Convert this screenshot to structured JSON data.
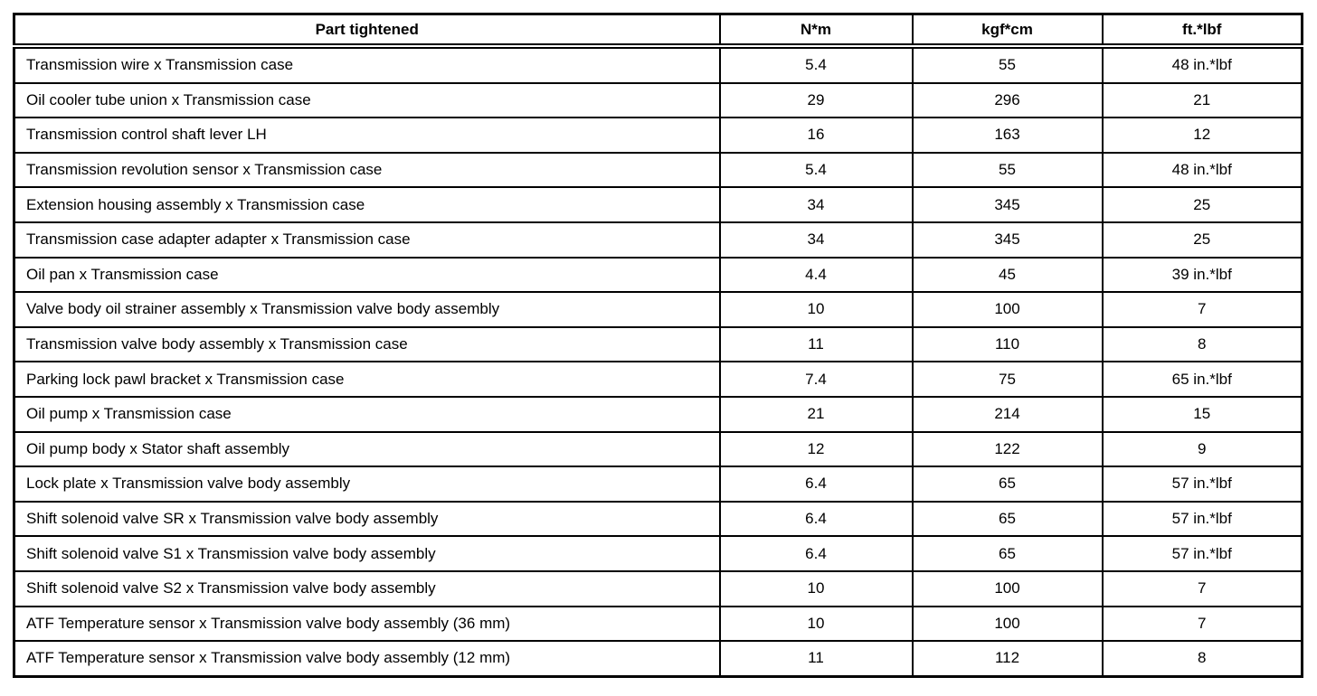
{
  "page": {
    "background_color": "#ffffff",
    "text_color": "#000000",
    "border_color": "#000000"
  },
  "table": {
    "columns": [
      {
        "id": "part",
        "label": "Part tightened"
      },
      {
        "id": "nm",
        "label": "N*m"
      },
      {
        "id": "kgfcm",
        "label": "kgf*cm"
      },
      {
        "id": "ftlbf",
        "label": "ft.*lbf"
      }
    ],
    "rows": [
      [
        "Transmission wire x Transmission case",
        "5.4",
        "55",
        "48 in.*lbf"
      ],
      [
        "Oil cooler tube union x Transmission case",
        "29",
        "296",
        "21"
      ],
      [
        "Transmission control shaft lever LH",
        "16",
        "163",
        "12"
      ],
      [
        "Transmission revolution sensor x Transmission case",
        "5.4",
        "55",
        "48 in.*lbf"
      ],
      [
        "Extension housing assembly x Transmission case",
        "34",
        "345",
        "25"
      ],
      [
        "Transmission case adapter adapter x Transmission case",
        "34",
        "345",
        "25"
      ],
      [
        "Oil pan x Transmission case",
        "4.4",
        "45",
        "39 in.*lbf"
      ],
      [
        "Valve body oil strainer assembly x Transmission valve body assembly",
        "10",
        "100",
        "7"
      ],
      [
        "Transmission valve body assembly x Transmission case",
        "11",
        "110",
        "8"
      ],
      [
        "Parking lock pawl bracket x Transmission case",
        "7.4",
        "75",
        "65 in.*lbf"
      ],
      [
        "Oil pump x Transmission case",
        "21",
        "214",
        "15"
      ],
      [
        "Oil pump body x Stator shaft assembly",
        "12",
        "122",
        "9"
      ],
      [
        "Lock plate x Transmission valve body assembly",
        "6.4",
        "65",
        "57 in.*lbf"
      ],
      [
        "Shift solenoid valve SR x Transmission valve body assembly",
        "6.4",
        "65",
        "57 in.*lbf"
      ],
      [
        "Shift solenoid valve S1 x Transmission valve body assembly",
        "6.4",
        "65",
        "57 in.*lbf"
      ],
      [
        "Shift solenoid valve S2 x Transmission valve body assembly",
        "10",
        "100",
        "7"
      ],
      [
        "ATF Temperature sensor x Transmission valve body assembly (36 mm)",
        "10",
        "100",
        "7"
      ],
      [
        "ATF Temperature sensor x Transmission valve body assembly (12 mm)",
        "11",
        "112",
        "8"
      ]
    ]
  }
}
